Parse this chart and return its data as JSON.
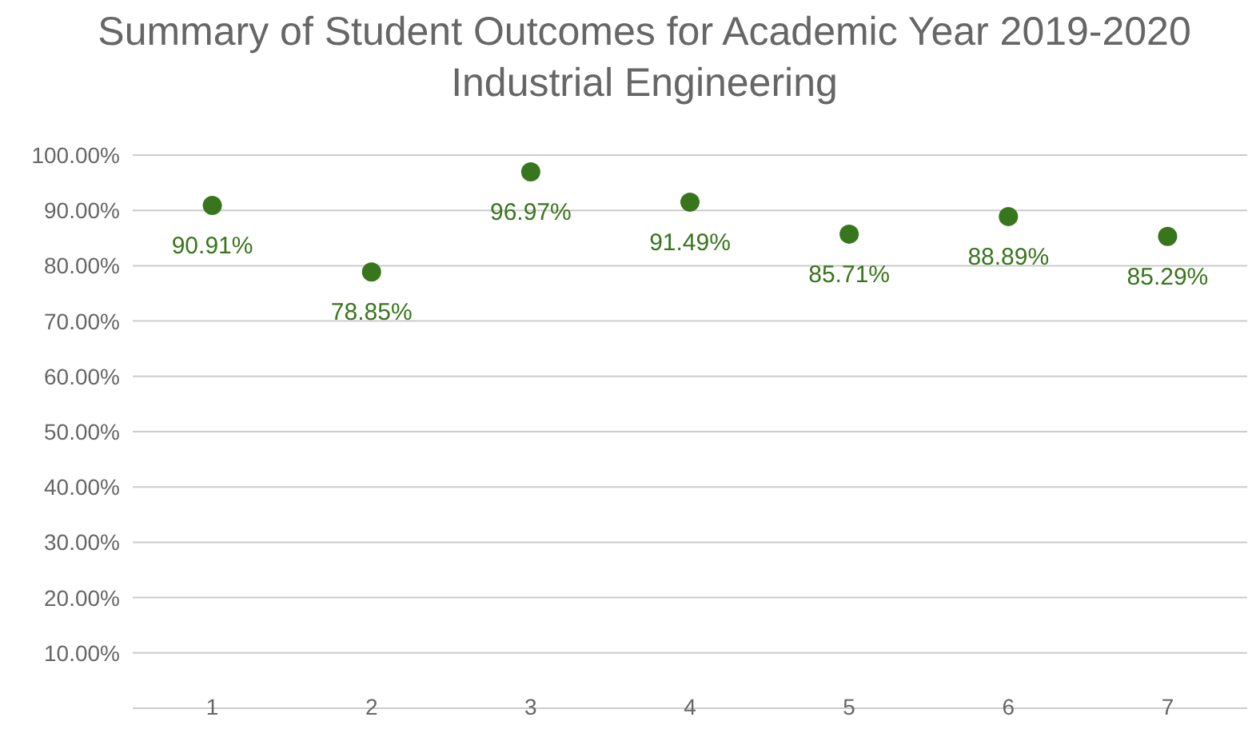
{
  "chart_data": {
    "type": "scatter",
    "title": "Summary of Student Outcomes for Academic Year 2019-2020",
    "subtitle": "Industrial Engineering",
    "categories": [
      "1",
      "2",
      "3",
      "4",
      "5",
      "6",
      "7"
    ],
    "series": [
      {
        "color": "#38761d",
        "values": [
          90.91,
          78.85,
          96.97,
          91.49,
          85.71,
          88.89,
          85.29
        ],
        "value_labels": [
          "90.91%",
          "78.85%",
          "96.97%",
          "91.49%",
          "85.71%",
          "88.89%",
          "85.29%"
        ]
      }
    ],
    "ylim": [
      0,
      100
    ],
    "yticks": [
      {
        "value": 10,
        "label": "10.00%"
      },
      {
        "value": 20,
        "label": "20.00%"
      },
      {
        "value": 30,
        "label": "30.00%"
      },
      {
        "value": 40,
        "label": "40.00%"
      },
      {
        "value": 50,
        "label": "50.00%"
      },
      {
        "value": 60,
        "label": "60.00%"
      },
      {
        "value": 70,
        "label": "70.00%"
      },
      {
        "value": 80,
        "label": "80.00%"
      },
      {
        "value": 90,
        "label": "90.00%"
      },
      {
        "value": 100,
        "label": "100.00%"
      }
    ],
    "grid": "y",
    "legend": false,
    "marker": "circle"
  }
}
